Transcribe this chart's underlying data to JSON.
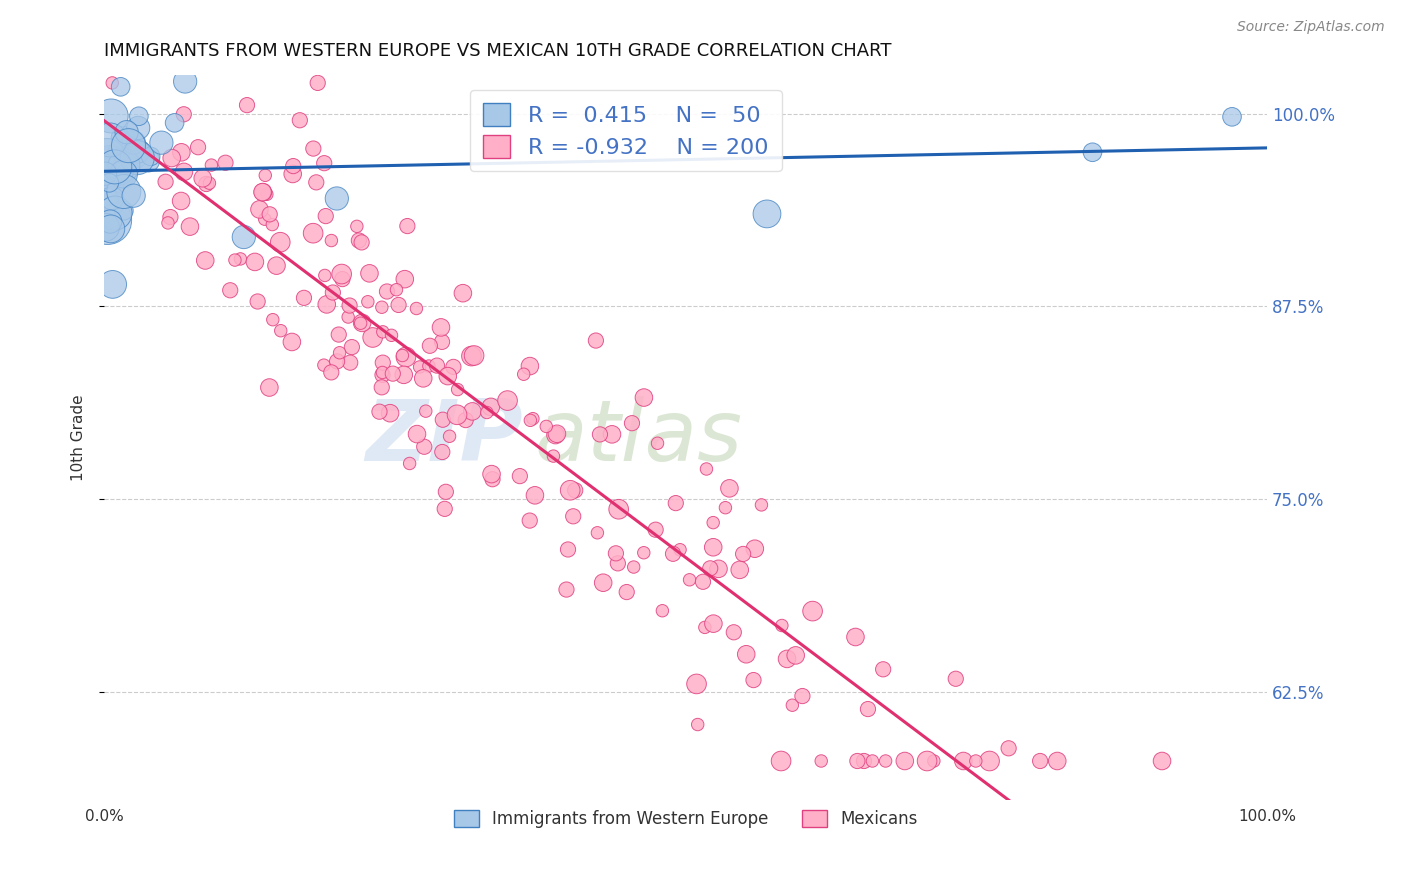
{
  "title": "IMMIGRANTS FROM WESTERN EUROPE VS MEXICAN 10TH GRADE CORRELATION CHART",
  "source": "Source: ZipAtlas.com",
  "ylabel": "10th Grade",
  "legend_label_blue": "Immigrants from Western Europe",
  "legend_label_pink": "Mexicans",
  "r_blue": 0.415,
  "n_blue": 50,
  "r_pink": -0.932,
  "n_pink": 200,
  "watermark_zip": "ZIP",
  "watermark_atlas": "atlas",
  "blue_color": "#a8c8e8",
  "blue_edge_color": "#4080c0",
  "blue_line_color": "#2060b0",
  "pink_color": "#ffb0c8",
  "pink_edge_color": "#e04080",
  "pink_line_color": "#e03070",
  "background_color": "#ffffff",
  "title_fontsize": 13,
  "axis_label_fontsize": 10,
  "tick_fontsize": 11,
  "legend_fontsize": 13,
  "source_fontsize": 10,
  "ytick_vals": [
    0.625,
    0.75,
    0.875,
    1.0
  ],
  "ytick_labels": [
    "62.5%",
    "75.0%",
    "87.5%",
    "100.0%"
  ],
  "ymin": 0.555,
  "ymax": 1.025,
  "xmin": 0.0,
  "xmax": 1.0
}
